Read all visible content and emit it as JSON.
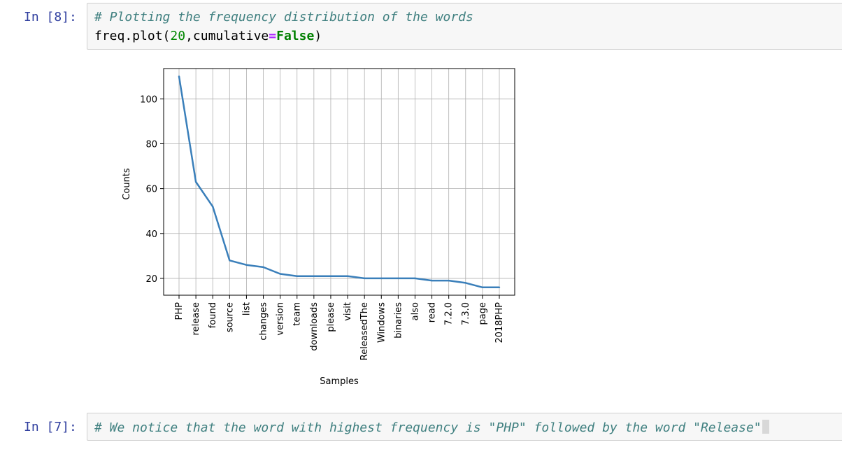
{
  "cells": [
    {
      "prompt": "In [8]:",
      "code_comment": "# Plotting the frequency distribution of the words",
      "code_obj": "freq.plot(",
      "code_num": "20",
      "code_sep": ",cumulative",
      "code_op": "=",
      "code_kw": "False",
      "code_end": ")"
    },
    {
      "prompt": "In [7]:",
      "code_comment": "# We notice that the word with highest frequency is \"PHP\" followed by the word \"Release\""
    }
  ],
  "colors": {
    "line": "#3a7fba",
    "prompt": "#303f9f",
    "comment": "#408080"
  },
  "chart_data": {
    "type": "line",
    "xlabel": "Samples",
    "ylabel": "Counts",
    "categories": [
      "PHP",
      "release",
      "found",
      "source",
      "list",
      "changes",
      "version",
      "team",
      "downloads",
      "please",
      "visit",
      "ReleasedThe",
      "Windows",
      "binaries",
      "also",
      "read",
      "7.2.0",
      "7.3.0",
      "page",
      "2018PHP"
    ],
    "values": [
      110,
      63,
      52,
      28,
      26,
      25,
      22,
      21,
      21,
      21,
      21,
      20,
      20,
      20,
      20,
      19,
      19,
      18,
      16,
      16
    ],
    "yticks": [
      20,
      40,
      60,
      80,
      100
    ],
    "ylim": [
      12.5,
      113.5
    ],
    "grid": true
  }
}
